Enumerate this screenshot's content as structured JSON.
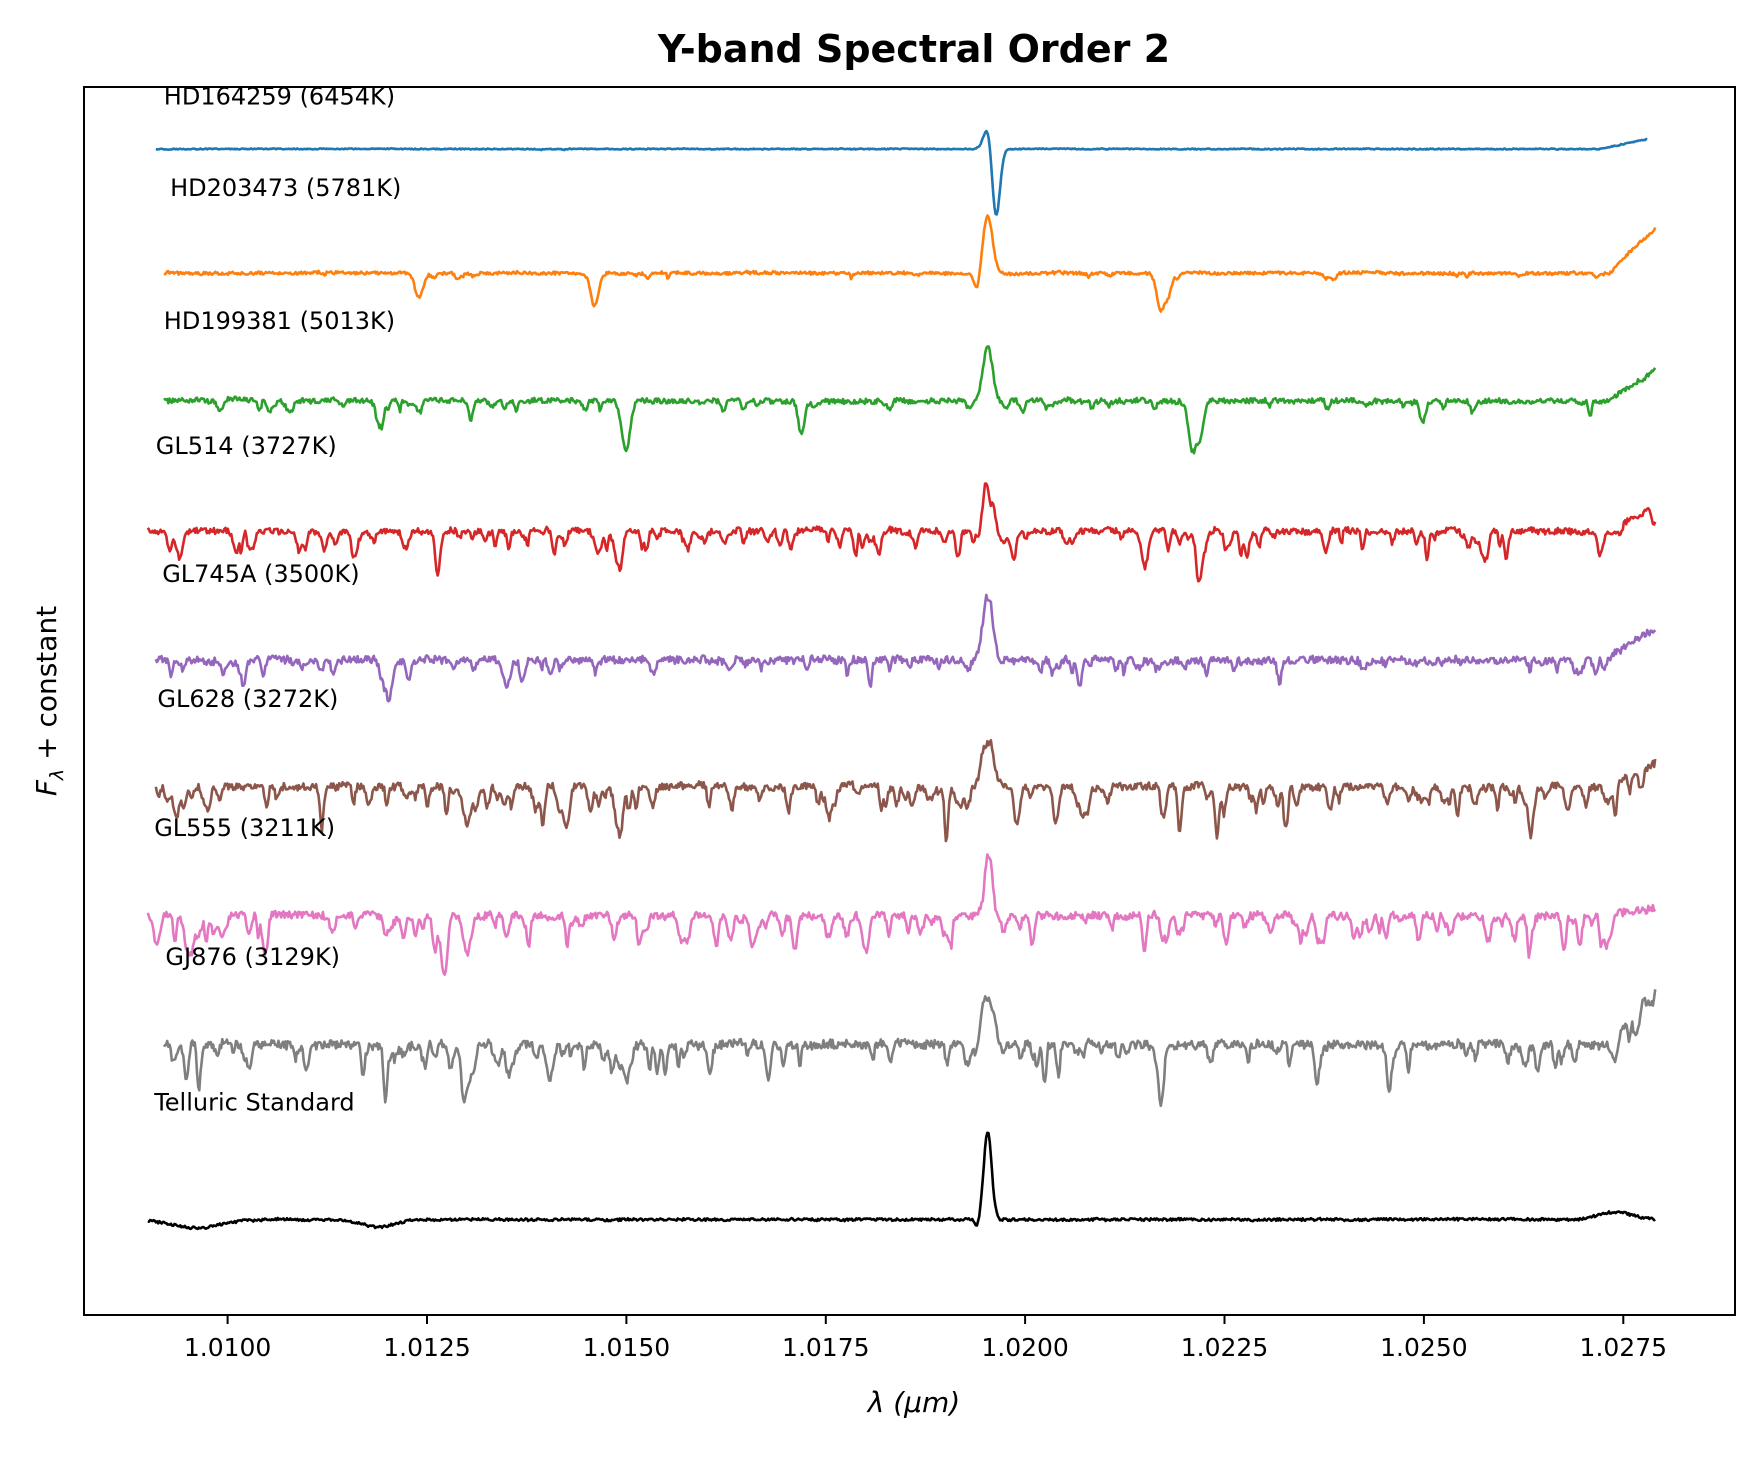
{
  "chart_data": {
    "type": "line",
    "title": "Y-band Spectral Order 2",
    "xlabel": "λ (μm)",
    "ylabel_main": "F",
    "ylabel_sub": "λ",
    "ylabel_rest": " + constant",
    "xlim": [
      1.0082,
      1.0289
    ],
    "ylim": [
      -0.5,
      9.4
    ],
    "x_ticks": [
      1.01,
      1.0125,
      1.015,
      1.0175,
      1.02,
      1.0225,
      1.025,
      1.0275
    ],
    "x_tick_labels": [
      "1.0100",
      "1.0125",
      "1.0150",
      "1.0175",
      "1.0200",
      "1.0225",
      "1.0250",
      "1.0275"
    ],
    "y_ticks_shown": false,
    "grid": false,
    "legend": "none (labels placed above each spectrum)",
    "central_feature_um": 1.01955,
    "series": [
      {
        "label": "HD164259 (6454K)",
        "color": "#1f77b4",
        "offset": 8.9,
        "x_start": 1.0091,
        "x_end": 1.0278,
        "label_x": 1.0092,
        "label_dy": 0.36,
        "noise": 0.004,
        "lines": 2,
        "line_depth": 0.02,
        "edge_rise": 0.08,
        "features": [
          [
            1.01955,
            0.22,
            6e-05
          ],
          [
            1.01963,
            -0.62,
            5e-05
          ]
        ]
      },
      {
        "label": "HD203473 (5781K)",
        "color": "#ff7f0e",
        "offset": 7.9,
        "x_start": 1.0092,
        "x_end": 1.0279,
        "label_x": 1.00928,
        "label_dy": 0.62,
        "noise": 0.012,
        "lines": 22,
        "line_depth": 0.04,
        "edge_rise": 0.36,
        "features": [
          [
            1.01953,
            0.46,
            6e-05
          ],
          [
            1.0124,
            -0.2,
            5e-05
          ],
          [
            1.0146,
            -0.26,
            5e-05
          ],
          [
            1.0217,
            -0.3,
            5e-05
          ],
          [
            1.0218,
            -0.15,
            4e-05
          ],
          [
            1.0194,
            -0.15,
            4e-05
          ]
        ]
      },
      {
        "label": "HD199381 (5013K)",
        "color": "#2ca02c",
        "offset": 6.87,
        "x_start": 1.0092,
        "x_end": 1.0279,
        "label_x": 1.0092,
        "label_dy": 0.58,
        "noise": 0.02,
        "lines": 50,
        "line_depth": 0.08,
        "edge_rise": 0.26,
        "features": [
          [
            1.01953,
            0.44,
            6e-05
          ],
          [
            1.015,
            -0.38,
            5e-05
          ],
          [
            1.0221,
            -0.4,
            5e-05
          ],
          [
            1.0222,
            -0.25,
            4e-05
          ],
          [
            1.0119,
            -0.2,
            4e-05
          ],
          [
            1.0172,
            -0.2,
            4e-05
          ]
        ]
      },
      {
        "label": "GL514 (3727K)",
        "color": "#d62728",
        "offset": 5.82,
        "x_start": 1.009,
        "x_end": 1.0279,
        "label_x": 1.0091,
        "label_dy": 0.62,
        "noise": 0.025,
        "lines": 110,
        "line_depth": 0.14,
        "edge_rise": 0.2,
        "features": [
          [
            1.01953,
            0.46,
            6e-05
          ],
          [
            1.0149,
            -0.28,
            5e-05
          ],
          [
            1.0222,
            -0.3,
            5e-05
          ],
          [
            1.0215,
            -0.3,
            4e-05
          ],
          [
            1.0094,
            -0.22,
            4e-05
          ]
        ]
      },
      {
        "label": "GL745A (3500K)",
        "color": "#9467bd",
        "offset": 4.78,
        "x_start": 1.0091,
        "x_end": 1.0279,
        "label_x": 1.00918,
        "label_dy": 0.63,
        "noise": 0.03,
        "lines": 75,
        "line_depth": 0.1,
        "edge_rise": 0.26,
        "features": [
          [
            1.01953,
            0.56,
            6e-05
          ],
          [
            1.012,
            -0.25,
            5e-05
          ],
          [
            1.0135,
            -0.22,
            4e-05
          ]
        ]
      },
      {
        "label": "GL628 (3272K)",
        "color": "#8c564b",
        "offset": 3.76,
        "x_start": 1.0091,
        "x_end": 1.0279,
        "label_x": 1.00912,
        "label_dy": 0.64,
        "noise": 0.03,
        "lines": 130,
        "line_depth": 0.18,
        "edge_rise": 0.2,
        "features": [
          [
            1.01953,
            0.52,
            6e-05
          ],
          [
            1.013,
            -0.3,
            5e-05
          ],
          [
            1.0149,
            -0.28,
            5e-05
          ]
        ]
      },
      {
        "label": "GL555 (3211K)",
        "color": "#e377c2",
        "offset": 2.72,
        "x_start": 1.009,
        "x_end": 1.0279,
        "label_x": 1.00908,
        "label_dy": 0.64,
        "noise": 0.03,
        "lines": 130,
        "line_depth": 0.17,
        "edge_rise": 0.06,
        "features": [
          [
            1.01953,
            0.52,
            6e-05
          ],
          [
            1.013,
            -0.3,
            5e-05
          ],
          [
            1.0095,
            -0.22,
            4e-05
          ]
        ]
      },
      {
        "label": "GJ876 (3129K)",
        "color": "#7f7f7f",
        "offset": 1.68,
        "x_start": 1.0092,
        "x_end": 1.0279,
        "label_x": 1.00922,
        "label_dy": 0.64,
        "noise": 0.035,
        "lines": 110,
        "line_depth": 0.18,
        "edge_rise": 0.46,
        "features": [
          [
            1.01953,
            0.56,
            6e-05
          ],
          [
            1.015,
            -0.3,
            5e-05
          ],
          [
            1.013,
            -0.28,
            4e-05
          ]
        ]
      },
      {
        "label": "Telluric Standard",
        "color": "#000000",
        "offset": 0.27,
        "x_start": 1.009,
        "x_end": 1.0279,
        "label_x": 1.00908,
        "label_dy": 0.88,
        "noise": 0.01,
        "lines": 0,
        "line_depth": 0.0,
        "edge_rise": 0.0,
        "features": [
          [
            1.01953,
            0.7,
            5e-05
          ],
          [
            1.0096,
            -0.07,
            0.0003
          ],
          [
            1.0119,
            -0.06,
            0.0002
          ],
          [
            1.0194,
            -0.06,
            3e-05
          ],
          [
            1.0274,
            0.06,
            0.0002
          ]
        ]
      }
    ]
  },
  "colors": {
    "axes": "#000000",
    "background": "#ffffff"
  }
}
